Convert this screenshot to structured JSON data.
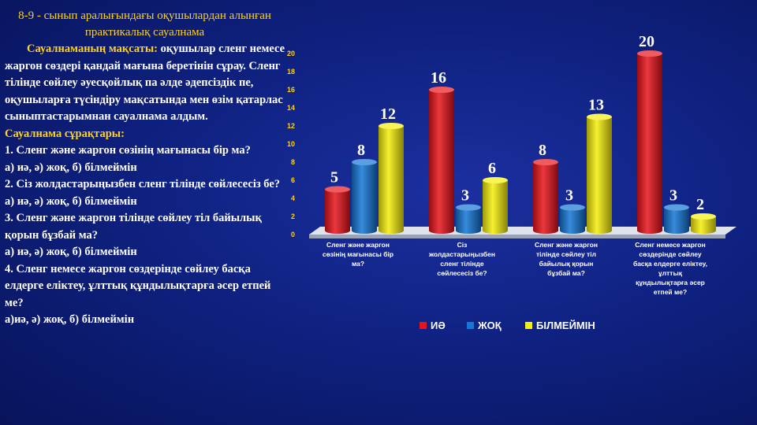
{
  "text": {
    "title": "8-9 - сынып аралығындағы оқушылардан алынған практикалық сауалнама",
    "purpose_label": "Сауалнаманың мақсаты:",
    "purpose_text": "оқушылар сленг немесе жаргон сөздері қандай мағына беретінін сұрау. Сленг тілінде сөйлеу әуесқойлық па әлде әдепсіздік пе, оқушыларға түсіндіру мақсатында мен өзім қатарлас сыныптастарымнан сауалнама алдым.",
    "questions_heading": "Сауалнама сұрақтары:",
    "questions": [
      {
        "question": "1. Сленг және жаргон сөзінің мағынасы бір ма?",
        "options": "а) иә, ә) жоқ, б) білмеймін"
      },
      {
        "question": "2. Сіз жолдастарыңызбен сленг тілінде сөйлесесіз бе?",
        "options": "а) иә, ә) жоқ, б) білмеймін"
      },
      {
        "question": "3. Сленг және жаргон тілінде сөйлеу тіл байылық қорын бұзбай ма?",
        "options": "а) иә, ә) жоқ, б) білмеймін"
      },
      {
        "question": "4. Сленг немесе жаргон сөздерінде сөйлеу басқа елдерге еліктеу, ұлттық құндылықтарға әсер етпей ме?",
        "options": "а)иә, ә) жоқ, б) білмеймін"
      }
    ]
  },
  "chart_data": {
    "type": "bar",
    "title": "",
    "xlabel": "",
    "ylabel": "",
    "ylim": [
      0,
      20
    ],
    "yticks": [
      "0",
      "2",
      "4",
      "6",
      "8",
      "10",
      "12",
      "14",
      "16",
      "18",
      "20"
    ],
    "categories": [
      [
        "Сленг және жаргон",
        "сөзінің мағынасы бір",
        "ма?"
      ],
      [
        "Сіз",
        "жолдастарыңызбен",
        "сленг тілінде",
        "сөйлесесіз бе?"
      ],
      [
        "Сленг және жаргон",
        "тілінде сөйлеу тіл",
        "байылық қорын",
        "бұзбай ма?"
      ],
      [
        "Сленг немесе жаргон",
        "сөздерінде сөйлеу",
        "басқа елдерге еліктеу,",
        "ұлттық",
        "құндылықтарға әсер",
        "етпей ме?"
      ]
    ],
    "series": [
      {
        "name": "ИӘ",
        "values": [
          5,
          16,
          8,
          20
        ],
        "color": "#e8141b"
      },
      {
        "name": "ЖОҚ",
        "values": [
          8,
          3,
          3,
          3
        ],
        "color": "#1476d6"
      },
      {
        "name": "БІЛМЕЙМІН",
        "values": [
          12,
          6,
          13,
          2
        ],
        "color": "#f5ef0c"
      }
    ],
    "data_labels": true,
    "legend_position": "bottom"
  }
}
